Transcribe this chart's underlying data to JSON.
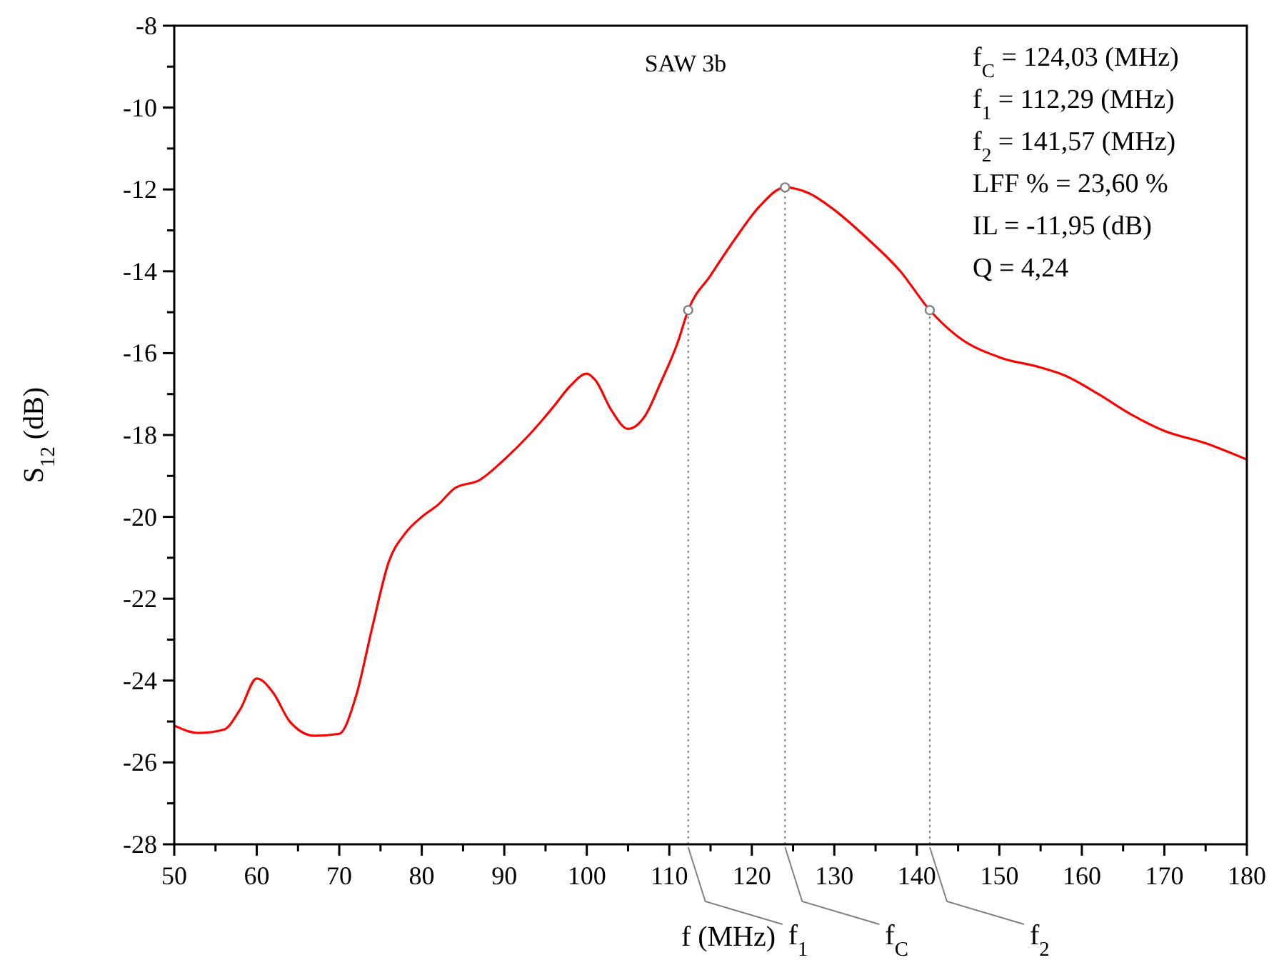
{
  "chart_data": {
    "type": "line",
    "title": "SAW 3b",
    "xlabel": "f (MHz)",
    "ylabel": "S$_{12}$ (dB)",
    "xlim": [
      50,
      180
    ],
    "ylim": [
      -28,
      -8
    ],
    "xticks": [
      50,
      {
        "value": 55,
        "label": null
      },
      60,
      {
        "value": 65,
        "label": null
      },
      70,
      {
        "value": 75,
        "label": null
      },
      80,
      {
        "value": 85,
        "label": null
      },
      90,
      {
        "value": 95,
        "label": null
      },
      100,
      {
        "value": 105,
        "label": null
      },
      110,
      {
        "value": 115,
        "label": null
      },
      120,
      {
        "value": 125,
        "label": null
      },
      130,
      {
        "value": 135,
        "label": null
      },
      140,
      {
        "value": 145,
        "label": null
      },
      150,
      {
        "value": 155,
        "label": null
      },
      160,
      {
        "value": 165,
        "label": null
      },
      170,
      {
        "value": 175,
        "label": null
      },
      180
    ],
    "yticks": [
      -28,
      {
        "value": -27,
        "label": null
      },
      -26,
      {
        "value": -25,
        "label": null
      },
      -24,
      {
        "value": -23,
        "label": null
      },
      -22,
      {
        "value": -21,
        "label": null
      },
      -20,
      {
        "value": -19,
        "label": null
      },
      -18,
      {
        "value": -17,
        "label": null
      },
      -16,
      {
        "value": -15,
        "label": null
      },
      -14,
      {
        "value": -13,
        "label": null
      },
      -12,
      {
        "value": -11,
        "label": null
      },
      -10,
      {
        "value": -9,
        "label": null
      },
      -8
    ],
    "grid": false,
    "series": [
      {
        "color": "#ff0000",
        "x": [
          50,
          53,
          56,
          58,
          60,
          62,
          64,
          67,
          70,
          72,
          74,
          76,
          78,
          80,
          82,
          84,
          87,
          90,
          93,
          96,
          98,
          100,
          101,
          103,
          105,
          107,
          109,
          111,
          112.29,
          115,
          118,
          121,
          124.03,
          127,
          130,
          134,
          138,
          141.57,
          145,
          150,
          155,
          158,
          162,
          166,
          170,
          175,
          180
        ],
        "values": [
          -25.1,
          -25.28,
          -25.2,
          -24.7,
          -23.95,
          -24.3,
          -25.0,
          -25.35,
          -25.3,
          -24.4,
          -22.7,
          -21.1,
          -20.4,
          -20.0,
          -19.7,
          -19.3,
          -19.1,
          -18.6,
          -18.0,
          -17.3,
          -16.8,
          -16.5,
          -16.65,
          -17.4,
          -17.85,
          -17.55,
          -16.7,
          -15.75,
          -14.95,
          -14.1,
          -13.2,
          -12.4,
          -11.95,
          -12.1,
          -12.5,
          -13.2,
          -14.0,
          -14.95,
          -15.6,
          -16.1,
          -16.35,
          -16.55,
          -17.0,
          -17.5,
          -17.9,
          -18.2,
          -18.6
        ]
      },
      {
        "type": "scatter",
        "color": "#808080",
        "marker": "circle",
        "x": [
          112.29,
          124.03,
          141.57
        ],
        "values": [
          -14.95,
          -11.95,
          -14.95
        ]
      }
    ],
    "ref_lines": [
      {
        "axis": "x",
        "value": 112.29,
        "label": "f$_{1}$",
        "color": "#808080",
        "line_style": "dotted"
      },
      {
        "axis": "x",
        "value": 124.03,
        "label": "f$_{C}$",
        "color": "#808080",
        "line_style": "dotted"
      },
      {
        "axis": "x",
        "value": 141.57,
        "label": "f$_{2}$",
        "color": "#808080",
        "line_style": "dotted"
      }
    ],
    "annotations": [
      "f$_{C}$ = 124,03 (MHz)",
      "f$_{1}$ = 112,29 (MHz)",
      "f$_{2}$ = 141,57 (MHz)",
      "LFF % = 23,60 %",
      "IL = -11,95 (dB)",
      "Q = 4,24"
    ]
  }
}
